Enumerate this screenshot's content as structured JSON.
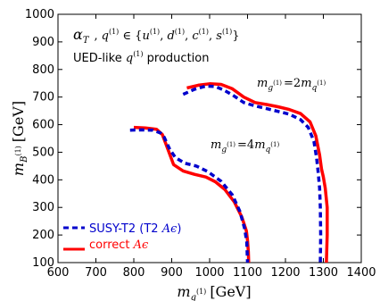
{
  "chart_data": {
    "type": "line",
    "xlabel": "m_{q^{(1)}} [GeV]",
    "ylabel": "m_{B^{(1)}} [GeV]",
    "xlim": [
      600,
      1400
    ],
    "ylim": [
      100,
      1000
    ],
    "xticks": [
      "600",
      "700",
      "800",
      "900",
      "1000",
      "1100",
      "1200",
      "1300",
      "1400"
    ],
    "yticks": [
      "100",
      "200",
      "300",
      "400",
      "500",
      "600",
      "700",
      "800",
      "900",
      "1000"
    ],
    "x_tick_values": [
      600,
      700,
      800,
      900,
      1000,
      1100,
      1200,
      1300,
      1400
    ],
    "y_tick_values": [
      100,
      200,
      300,
      400,
      500,
      600,
      700,
      800,
      900,
      1000
    ],
    "annotations": {
      "line1": "α_T , q^{(1)} ∈ {u^{(1)}, d^{(1)}, c^{(1)}, s^{(1)}}",
      "line2": "UED-like q^{(1)} production",
      "curve_label_2m": "m_{g^{(1)}} = 2m_{q^{(1)}}",
      "curve_label_4m": "m_{g^{(1)}} = 4m_{q^{(1)}}"
    },
    "legend": {
      "placement": "bottom-left",
      "entries": [
        {
          "label": "SUSY-T2 (T2 Aε)",
          "color": "#0000cc",
          "style": "dashed"
        },
        {
          "label": "correct Aε",
          "color": "#ff0000",
          "style": "solid"
        }
      ]
    },
    "series": [
      {
        "group": "4m",
        "style": "solid",
        "color": "#ff0000",
        "points": [
          [
            800,
            590
          ],
          [
            830,
            588
          ],
          [
            860,
            583
          ],
          [
            875,
            565
          ],
          [
            890,
            510
          ],
          [
            905,
            455
          ],
          [
            930,
            432
          ],
          [
            960,
            420
          ],
          [
            990,
            410
          ],
          [
            1015,
            393
          ],
          [
            1040,
            365
          ],
          [
            1065,
            320
          ],
          [
            1085,
            265
          ],
          [
            1097,
            215
          ],
          [
            1100,
            180
          ],
          [
            1102,
            140
          ],
          [
            1103,
            100
          ]
        ]
      },
      {
        "group": "4m",
        "style": "dashed",
        "color": "#0000cc",
        "points": [
          [
            790,
            580
          ],
          [
            820,
            581
          ],
          [
            850,
            580
          ],
          [
            870,
            570
          ],
          [
            880,
            555
          ],
          [
            895,
            510
          ],
          [
            910,
            480
          ],
          [
            935,
            460
          ],
          [
            965,
            450
          ],
          [
            995,
            430
          ],
          [
            1030,
            395
          ],
          [
            1060,
            345
          ],
          [
            1080,
            285
          ],
          [
            1092,
            225
          ],
          [
            1098,
            175
          ],
          [
            1100,
            100
          ]
        ]
      },
      {
        "group": "2m",
        "style": "solid",
        "color": "#ff0000",
        "points": [
          [
            940,
            733
          ],
          [
            970,
            743
          ],
          [
            1000,
            748
          ],
          [
            1030,
            746
          ],
          [
            1060,
            730
          ],
          [
            1090,
            700
          ],
          [
            1120,
            680
          ],
          [
            1150,
            673
          ],
          [
            1180,
            665
          ],
          [
            1210,
            655
          ],
          [
            1240,
            640
          ],
          [
            1265,
            610
          ],
          [
            1280,
            560
          ],
          [
            1290,
            490
          ],
          [
            1295,
            440
          ],
          [
            1300,
            410
          ],
          [
            1305,
            370
          ],
          [
            1310,
            300
          ],
          [
            1310,
            200
          ],
          [
            1308,
            100
          ]
        ]
      },
      {
        "group": "2m",
        "style": "dashed",
        "color": "#0000cc",
        "points": [
          [
            930,
            710
          ],
          [
            960,
            728
          ],
          [
            990,
            740
          ],
          [
            1015,
            738
          ],
          [
            1035,
            727
          ],
          [
            1060,
            708
          ],
          [
            1090,
            680
          ],
          [
            1120,
            668
          ],
          [
            1150,
            658
          ],
          [
            1180,
            648
          ],
          [
            1210,
            638
          ],
          [
            1240,
            618
          ],
          [
            1260,
            590
          ],
          [
            1275,
            540
          ],
          [
            1282,
            480
          ],
          [
            1286,
            430
          ],
          [
            1290,
            370
          ],
          [
            1292,
            300
          ],
          [
            1293,
            200
          ],
          [
            1292,
            100
          ]
        ]
      }
    ]
  }
}
